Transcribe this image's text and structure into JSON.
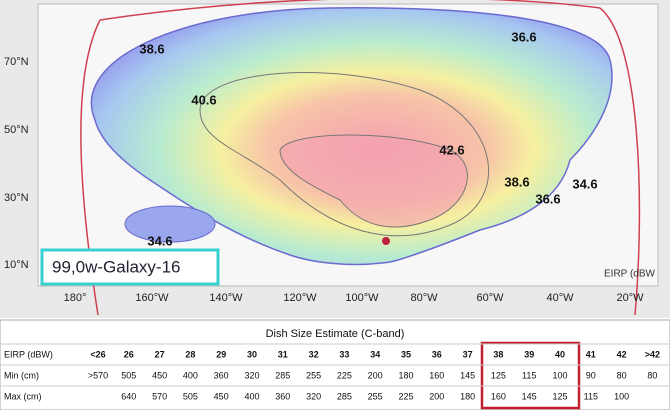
{
  "map": {
    "latitude_labels": [
      "70°N",
      "50°N",
      "30°N",
      "10°N"
    ],
    "longitude_labels": [
      "180°",
      "160°W",
      "140°W",
      "120°W",
      "100°W",
      "80°W",
      "60°W",
      "40°W",
      "20°W"
    ],
    "contour_labels": [
      "38.6",
      "36.6",
      "40.6",
      "42.6",
      "38.6",
      "36.6",
      "34.6",
      "34.6"
    ],
    "satellite": "99,0w-Galaxy-16",
    "legend_label": "EIRP (dBW"
  },
  "table": {
    "title": "Dish Size Estimate (C-band)",
    "rows": [
      [
        "EIRP (dBW)",
        "<26",
        "26",
        "27",
        "28",
        "29",
        "30",
        "31",
        "32",
        "33",
        "34",
        "35",
        "36",
        "37",
        "38",
        "39",
        "40",
        "41",
        "42",
        ">42"
      ],
      [
        "Min (cm)",
        ">570",
        "505",
        "450",
        "400",
        "360",
        "320",
        "285",
        "255",
        "225",
        "200",
        "180",
        "160",
        "145",
        "125",
        "115",
        "100",
        "90",
        "80",
        "80"
      ],
      [
        "Max (cm)",
        null,
        "640",
        "570",
        "505",
        "450",
        "400",
        "360",
        "320",
        "285",
        "255",
        "225",
        "200",
        "180",
        "160",
        "145",
        "125",
        "115",
        "100",
        null
      ]
    ]
  }
}
